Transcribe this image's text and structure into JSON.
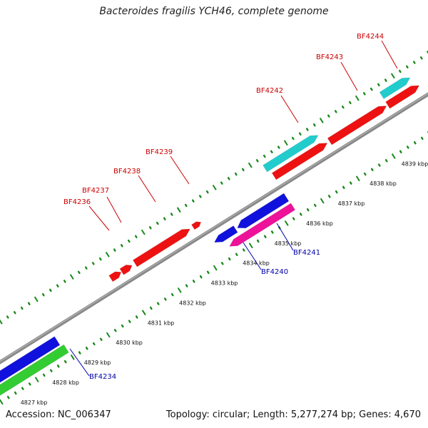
{
  "title": "Bacteroides fragilis YCH46, complete genome",
  "footer": {
    "accession": "Accession: NC_006347",
    "summary": "Topology: circular; Length: 5,277,274 bp; Genes: 4,670"
  },
  "colors": {
    "backbone": "#888888",
    "tick_dot": "#1a8a1a",
    "label_forward": "#cc0000",
    "label_reverse": "#0000aa"
  },
  "ticks": [
    "4827 kbp",
    "4828 kbp",
    "4829 kbp",
    "4830 kbp",
    "4831 kbp",
    "4832 kbp",
    "4833 kbp",
    "4834 kbp",
    "4835 kbp",
    "4836 kbp",
    "4837 kbp",
    "4838 kbp",
    "4839 kbp"
  ],
  "features_forward": [
    {
      "label": "BF4236",
      "color": "#ee1111"
    },
    {
      "label": "BF4237",
      "color": "#ee1111"
    },
    {
      "label": "BF4238",
      "color": "#ee1111"
    },
    {
      "label": "BF4239",
      "color": "#ee1111"
    },
    {
      "label": "BF4242",
      "color": "#ee1111"
    },
    {
      "label": "BF4243",
      "color": "#ee1111"
    },
    {
      "label": "BF4244",
      "color": "#ee1111"
    }
  ],
  "features_forward_outer": [
    {
      "color": "#22cccc"
    },
    {
      "color": "#22cccc"
    }
  ],
  "features_reverse": [
    {
      "label": "BF4234",
      "color": "#1111dd"
    },
    {
      "label": "BF4240",
      "color": "#1111dd"
    },
    {
      "label": "BF4241",
      "color": "#1111dd"
    }
  ],
  "features_reverse_outer": [
    {
      "color": "#33cc33"
    },
    {
      "color": "#ee1199"
    }
  ]
}
